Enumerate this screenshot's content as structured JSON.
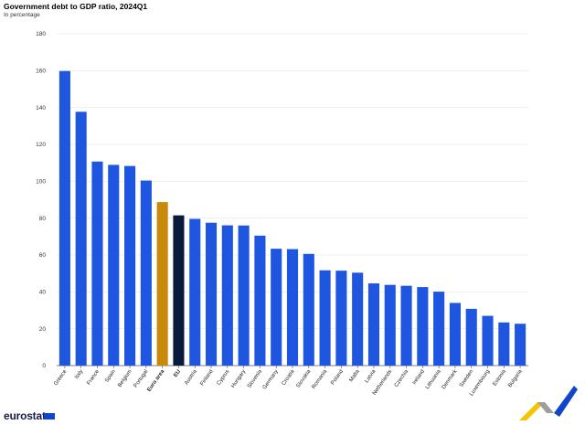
{
  "chart_data": {
    "type": "bar",
    "title": "Government debt to GDP ratio, 2024Q1",
    "subtitle": "In percentage",
    "categories": [
      "Greece",
      "Italy",
      "France",
      "Spain",
      "Belgium",
      "Portugal",
      "Euro area",
      "EU",
      "Austria",
      "Finland",
      "Cyprus",
      "Hungary",
      "Slovenia",
      "Germany",
      "Croatia",
      "Slovakia",
      "Romania",
      "Poland",
      "Malta",
      "Latvia",
      "Netherlands",
      "Czechia",
      "Ireland",
      "Lithuania",
      "Denmark",
      "Sweden",
      "Luxembourg",
      "Estonia",
      "Bulgaria"
    ],
    "values": [
      159.8,
      137.7,
      110.7,
      108.9,
      108.3,
      100.4,
      88.7,
      81.5,
      79.6,
      77.5,
      76.1,
      76.0,
      70.5,
      63.4,
      63.2,
      60.6,
      51.7,
      51.5,
      50.4,
      44.6,
      43.8,
      43.3,
      42.6,
      40.1,
      34.0,
      30.8,
      27.0,
      23.4,
      22.7
    ],
    "highlight": {
      "Euro area": "#c98a0c",
      "EU": "#0a1a3d"
    },
    "bold_categories": [
      "Euro area",
      "EU"
    ],
    "bar_color": "#1e56e0",
    "ylim": [
      0,
      180
    ],
    "yticks": [
      0,
      20,
      40,
      60,
      80,
      100,
      120,
      140,
      160,
      180
    ],
    "grid": true
  },
  "branding": {
    "logo_text": "eurostat"
  }
}
